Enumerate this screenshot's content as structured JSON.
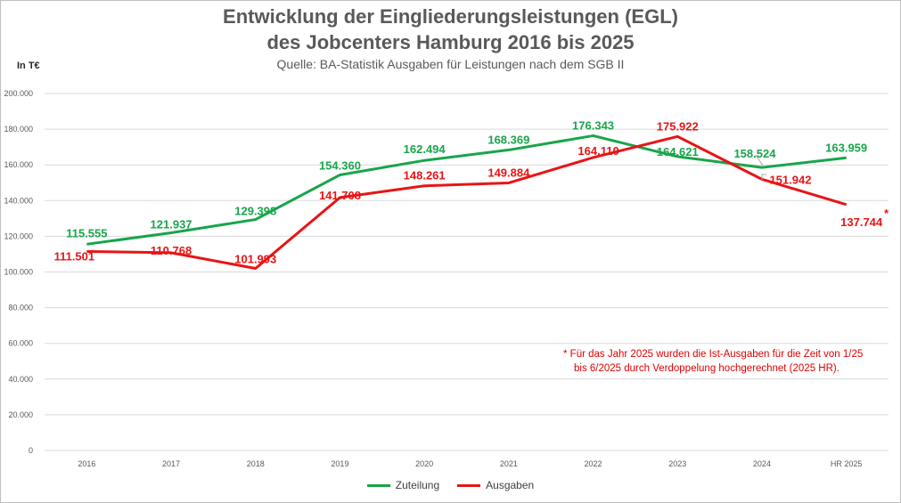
{
  "chart_data": {
    "type": "line",
    "title": "Entwicklung der Eingliederungsleistungen (EGL)",
    "title_line2": "des Jobcenters Hamburg 2016 bis 2025",
    "subtitle": "Quelle: BA-Statistik Ausgaben für Leistungen nach dem SGB II",
    "ylabel": "In T€",
    "ylim": [
      0,
      200000
    ],
    "yticks": [
      "0",
      "20.000",
      "40.000",
      "60.000",
      "80.000",
      "100.000",
      "120.000",
      "140.000",
      "160.000",
      "180.000",
      "200.000"
    ],
    "categories": [
      "2016",
      "2017",
      "2018",
      "2019",
      "2020",
      "2021",
      "2022",
      "2023",
      "2024",
      "HR 2025"
    ],
    "grid": true,
    "legend": "bottom",
    "series": [
      {
        "name": "Zuteilung",
        "color": "#17a54a",
        "values": [
          115555,
          121937,
          129398,
          154360,
          162494,
          168369,
          176343,
          164621,
          158524,
          163959
        ],
        "labels": [
          "115.555",
          "121.937",
          "129.398",
          "154.360",
          "162.494",
          "168.369",
          "176.343",
          "164.621",
          "158.524",
          "163.959"
        ]
      },
      {
        "name": "Ausgaben",
        "color": "#e81416",
        "values": [
          111501,
          110768,
          101993,
          141708,
          148261,
          149884,
          164110,
          175922,
          151942,
          137744
        ],
        "labels": [
          "111.501",
          "110.768",
          "101.993",
          "141.708",
          "148.261",
          "149.884",
          "164.110",
          "175.922",
          "151.942",
          "137.744"
        ]
      }
    ],
    "asterisk": "*",
    "footnote_line1": "*  Für das Jahr 2025 wurden die Ist-Ausgaben für die Zeit von 1/25",
    "footnote_line2": "bis 6/2025 durch Verdoppelung hochgerechnet (2025 HR)."
  }
}
